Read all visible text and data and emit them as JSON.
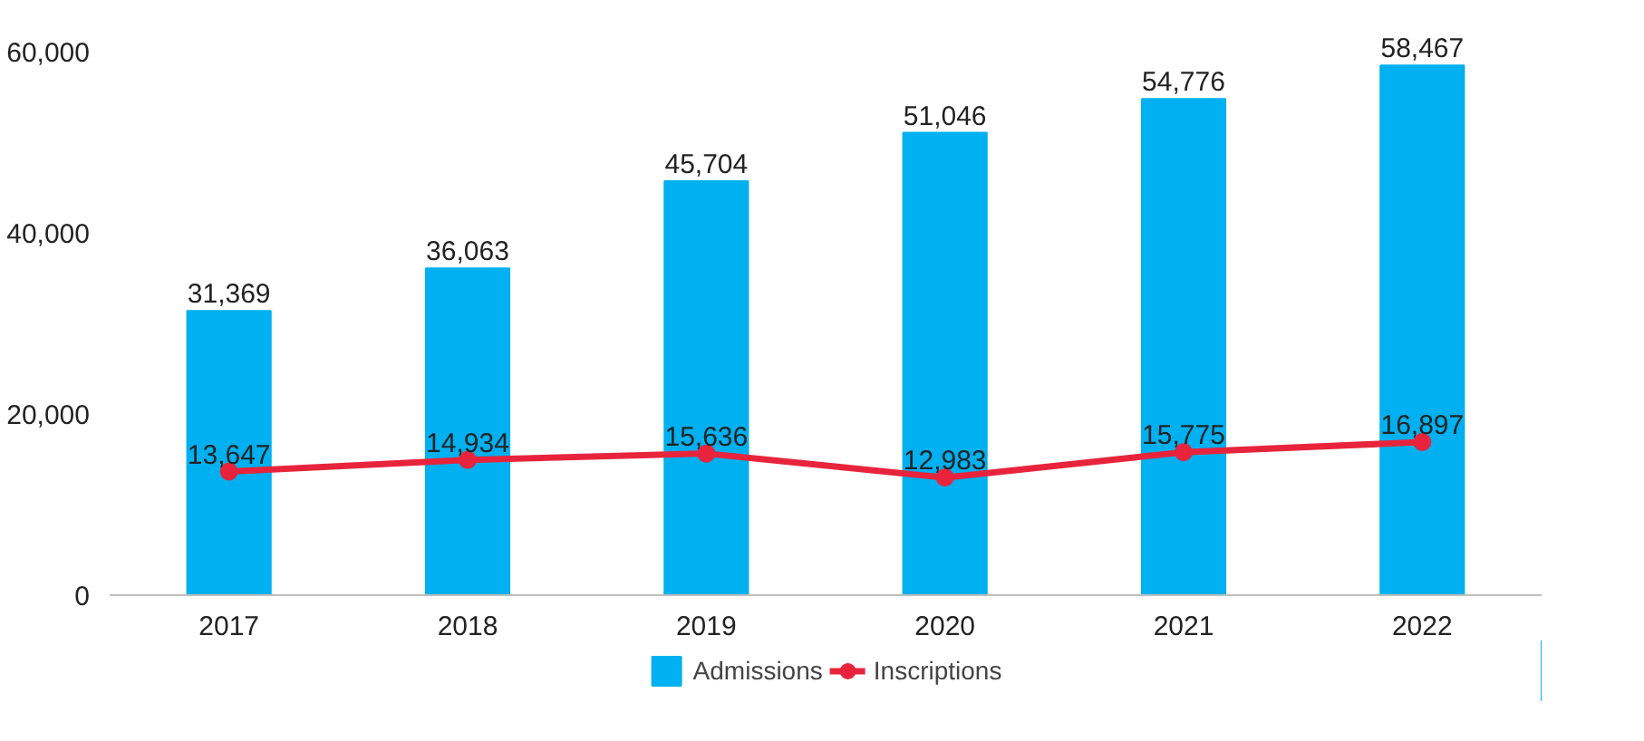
{
  "chart_data": {
    "type": "bar",
    "categories": [
      "2017",
      "2018",
      "2019",
      "2020",
      "2021",
      "2022"
    ],
    "series": [
      {
        "name": "Admissions",
        "color": "#00b0f0",
        "values": [
          31369,
          36063,
          45704,
          51046,
          54776,
          58467
        ],
        "value_labels": [
          "31,369",
          "36,063",
          "45,704",
          "51,046",
          "54,776",
          "58,467"
        ]
      },
      {
        "name": "Inscriptions",
        "type": "line",
        "color": "#e8243c",
        "marker": "circle",
        "values": [
          13647,
          14934,
          15636,
          12983,
          15775,
          16897
        ],
        "value_labels": [
          "13,647",
          "14,934",
          "15,636",
          "12,983",
          "15,775",
          "16,897"
        ]
      }
    ],
    "ylim": [
      0,
      60000
    ],
    "yticks": [
      0,
      {
        "value": 20000,
        "label": "20,000"
      },
      {
        "value": 40000,
        "label": "40,000"
      },
      {
        "value": 60000,
        "label": "60,000"
      }
    ],
    "grid": false,
    "legend": "bottom"
  }
}
